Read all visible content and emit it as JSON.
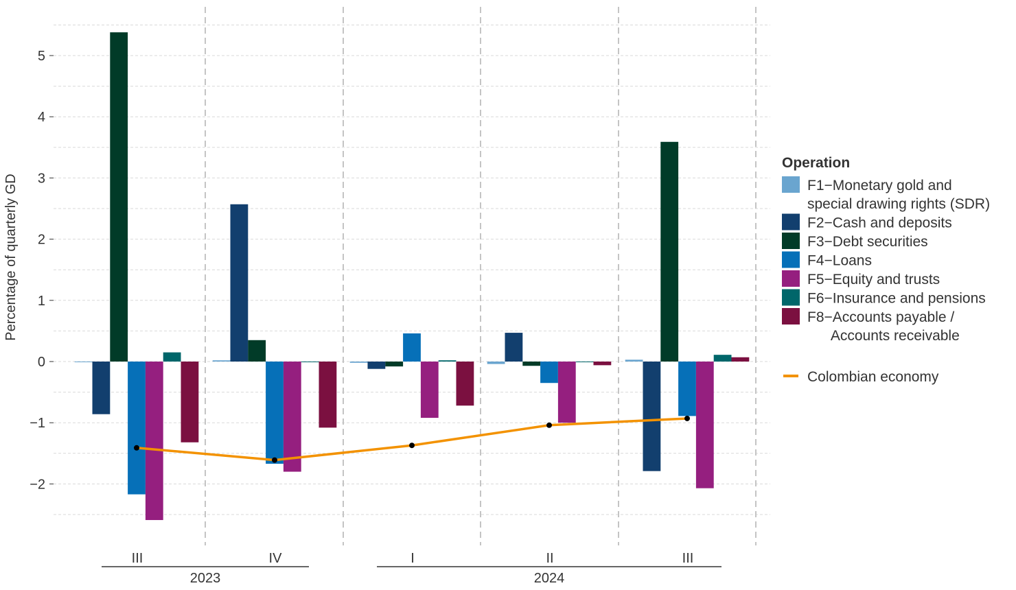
{
  "chart_data": {
    "type": "bar",
    "ylabel": "Percentage of quarterly GD",
    "ylim": [
      -2.5,
      5.5
    ],
    "yticks": [
      -2,
      -1,
      0,
      1,
      2,
      3,
      4,
      5
    ],
    "grid": true,
    "legend_position": "right",
    "legend_title": "Operation",
    "categories": [
      "III",
      "IV",
      "I",
      "II",
      "III"
    ],
    "year_groups": [
      {
        "label": "2023",
        "quarters": [
          0,
          1
        ]
      },
      {
        "label": "2024",
        "quarters": [
          2,
          3,
          4
        ]
      }
    ],
    "series": [
      {
        "name": "F1−Monetary gold and special drawing rights (SDR)",
        "legend_lines": [
          "F1−Monetary gold and",
          "special drawing rights (SDR)"
        ],
        "color": "#6aa5cf",
        "values": [
          -0.01,
          0.02,
          -0.02,
          -0.04,
          0.03
        ]
      },
      {
        "name": "F2−Cash and deposits",
        "legend_lines": [
          "F2−Cash and deposits"
        ],
        "color": "#123f6e",
        "values": [
          -0.86,
          2.57,
          -0.12,
          0.47,
          -1.79
        ]
      },
      {
        "name": "F3−Debt securities",
        "legend_lines": [
          "F3−Debt securities"
        ],
        "color": "#013b28",
        "values": [
          5.38,
          0.35,
          -0.08,
          -0.07,
          3.59
        ]
      },
      {
        "name": "F4−Loans",
        "legend_lines": [
          "F4−Loans"
        ],
        "color": "#0670b8",
        "values": [
          -2.17,
          -1.67,
          0.46,
          -0.35,
          -0.89
        ]
      },
      {
        "name": "F5−Equity and trusts",
        "legend_lines": [
          "F5−Equity and trusts"
        ],
        "color": "#951f7f",
        "values": [
          -2.59,
          -1.8,
          -0.92,
          -1.0,
          -2.07
        ]
      },
      {
        "name": "F6−Insurance and pensions",
        "legend_lines": [
          "F6−Insurance and pensions"
        ],
        "color": "#00666a",
        "values": [
          0.15,
          -0.01,
          0.02,
          0.0,
          0.11
        ]
      },
      {
        "name": "F8−Accounts payable / Accounts receivable",
        "legend_lines": [
          "F8−Accounts payable /",
          "      Accounts receivable"
        ],
        "color": "#7b1040",
        "values": [
          -1.32,
          -1.08,
          -0.72,
          -0.06,
          0.07
        ]
      }
    ],
    "line_series": {
      "name": "Colombian economy",
      "color": "#f39200",
      "values": [
        -1.41,
        -1.61,
        -1.37,
        -1.04,
        -0.93
      ]
    }
  }
}
